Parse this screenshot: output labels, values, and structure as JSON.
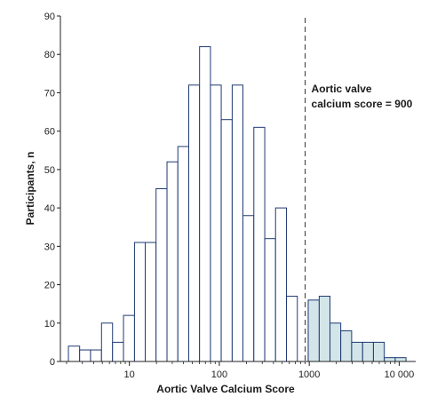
{
  "chart_data": {
    "type": "bar",
    "x_scale": "log",
    "xlabel": "Aortic Valve Calcium Score",
    "ylabel": "Participants, n",
    "ylim": [
      0,
      90
    ],
    "y_ticks": [
      0,
      10,
      20,
      30,
      40,
      50,
      60,
      70,
      80,
      90
    ],
    "x_ticks": [
      {
        "value": 10,
        "label": "10"
      },
      {
        "value": 100,
        "label": "100"
      },
      {
        "value": 1000,
        "label": "1000"
      },
      {
        "value": 10000,
        "label": "10 000"
      }
    ],
    "bins": [
      {
        "from": 2.1,
        "to": 2.8,
        "count": 4
      },
      {
        "from": 2.8,
        "to": 3.7,
        "count": 3
      },
      {
        "from": 3.7,
        "to": 4.9,
        "count": 3
      },
      {
        "from": 4.9,
        "to": 6.5,
        "count": 10
      },
      {
        "from": 6.5,
        "to": 8.6,
        "count": 5
      },
      {
        "from": 8.6,
        "to": 11.4,
        "count": 12
      },
      {
        "from": 11.4,
        "to": 15.0,
        "count": 31
      },
      {
        "from": 15.0,
        "to": 19.8,
        "count": 31
      },
      {
        "from": 19.8,
        "to": 26.2,
        "count": 45
      },
      {
        "from": 26.2,
        "to": 34.6,
        "count": 52
      },
      {
        "from": 34.6,
        "to": 45.7,
        "count": 56
      },
      {
        "from": 45.7,
        "to": 60.3,
        "count": 72
      },
      {
        "from": 60.3,
        "to": 79.7,
        "count": 82
      },
      {
        "from": 79.7,
        "to": 105.0,
        "count": 72
      },
      {
        "from": 105.0,
        "to": 139.0,
        "count": 63
      },
      {
        "from": 139.0,
        "to": 183.0,
        "count": 72
      },
      {
        "from": 183.0,
        "to": 242.0,
        "count": 38
      },
      {
        "from": 242.0,
        "to": 320.0,
        "count": 61
      },
      {
        "from": 320.0,
        "to": 422.0,
        "count": 32
      },
      {
        "from": 422.0,
        "to": 558.0,
        "count": 40
      },
      {
        "from": 558.0,
        "to": 737.0,
        "count": 17
      },
      {
        "from": 737.0,
        "to": 973.0,
        "count": 0
      },
      {
        "from": 973.0,
        "to": 1290.0,
        "count": 16
      },
      {
        "from": 1290.0,
        "to": 1700.0,
        "count": 17
      },
      {
        "from": 1700.0,
        "to": 2240.0,
        "count": 10
      },
      {
        "from": 2240.0,
        "to": 2960.0,
        "count": 8
      },
      {
        "from": 2960.0,
        "to": 3920.0,
        "count": 5
      },
      {
        "from": 3920.0,
        "to": 5170.0,
        "count": 5
      },
      {
        "from": 5170.0,
        "to": 6830.0,
        "count": 5
      },
      {
        "from": 6830.0,
        "to": 9030.0,
        "count": 1
      },
      {
        "from": 9030.0,
        "to": 11900.0,
        "count": 1
      }
    ],
    "reference_line": {
      "x": 900,
      "label_lines": [
        "Aortic valve",
        "calcium score = 900"
      ]
    },
    "colors": {
      "below_threshold_fill": "#ffffff",
      "above_threshold_fill": "#d3e5e8",
      "bar_stroke": "#1f3a73",
      "axis": "#222222",
      "reference_line": "#333333"
    },
    "grid": false
  }
}
